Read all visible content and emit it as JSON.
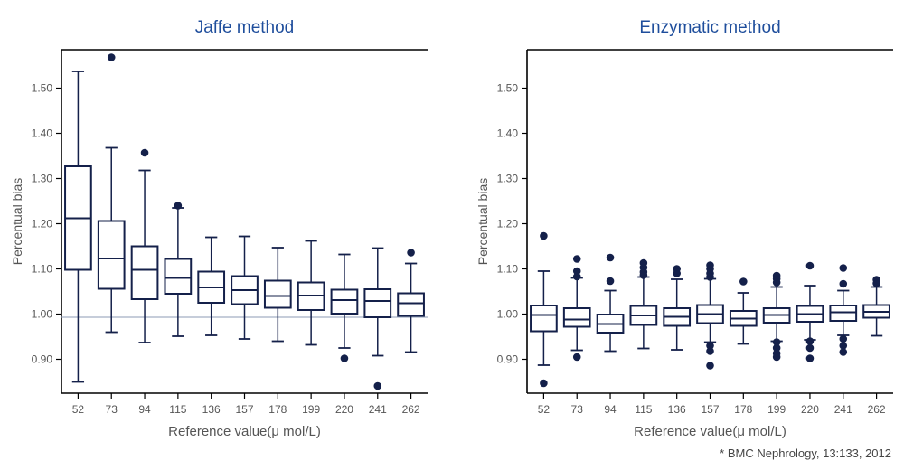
{
  "footnote": "* BMC Nephrology, 13:133, 2012",
  "colors": {
    "title": "#1f4e9c",
    "box": "#14204a",
    "reference_line": "#8e9bb4",
    "axis_text": "#555555"
  },
  "chart_data": [
    {
      "type": "box",
      "title": "Jaffe method",
      "xlabel": "Reference value(μ mol/L)",
      "ylabel": "Percentual bias",
      "ylim": [
        0.825,
        1.585
      ],
      "yticks": [
        "0.90",
        "1.00",
        "1.10",
        "1.20",
        "1.30",
        "1.40",
        "1.50"
      ],
      "reference_line": 0.993,
      "categories": [
        "52",
        "73",
        "94",
        "115",
        "136",
        "157",
        "178",
        "199",
        "220",
        "241",
        "262"
      ],
      "boxes": [
        {
          "whisker_low": 0.85,
          "q1": 1.098,
          "median": 1.212,
          "q3": 1.327,
          "whisker_high": 1.537,
          "outliers": []
        },
        {
          "whisker_low": 0.96,
          "q1": 1.056,
          "median": 1.123,
          "q3": 1.206,
          "whisker_high": 1.368,
          "outliers": [
            1.568
          ]
        },
        {
          "whisker_low": 0.937,
          "q1": 1.033,
          "median": 1.098,
          "q3": 1.15,
          "whisker_high": 1.318,
          "outliers": [
            1.357
          ]
        },
        {
          "whisker_low": 0.951,
          "q1": 1.045,
          "median": 1.08,
          "q3": 1.122,
          "whisker_high": 1.235,
          "outliers": [
            1.24
          ]
        },
        {
          "whisker_low": 0.953,
          "q1": 1.025,
          "median": 1.059,
          "q3": 1.094,
          "whisker_high": 1.17,
          "outliers": []
        },
        {
          "whisker_low": 0.945,
          "q1": 1.022,
          "median": 1.053,
          "q3": 1.084,
          "whisker_high": 1.172,
          "outliers": []
        },
        {
          "whisker_low": 0.94,
          "q1": 1.014,
          "median": 1.04,
          "q3": 1.074,
          "whisker_high": 1.147,
          "outliers": []
        },
        {
          "whisker_low": 0.932,
          "q1": 1.009,
          "median": 1.041,
          "q3": 1.07,
          "whisker_high": 1.162,
          "outliers": []
        },
        {
          "whisker_low": 0.925,
          "q1": 1.001,
          "median": 1.031,
          "q3": 1.054,
          "whisker_high": 1.132,
          "outliers": [
            0.902
          ]
        },
        {
          "whisker_low": 0.908,
          "q1": 0.993,
          "median": 1.029,
          "q3": 1.055,
          "whisker_high": 1.146,
          "outliers": [
            0.841
          ]
        },
        {
          "whisker_low": 0.916,
          "q1": 0.996,
          "median": 1.024,
          "q3": 1.046,
          "whisker_high": 1.112,
          "outliers": [
            1.136
          ]
        }
      ]
    },
    {
      "type": "box",
      "title": "Enzymatic method",
      "xlabel": "Reference value(μ mol/L)",
      "ylabel": "Percentual bias",
      "ylim": [
        0.825,
        1.585
      ],
      "yticks": [
        "0.90",
        "1.00",
        "1.10",
        "1.20",
        "1.30",
        "1.40",
        "1.50"
      ],
      "categories": [
        "52",
        "73",
        "94",
        "115",
        "136",
        "157",
        "178",
        "199",
        "220",
        "241",
        "262"
      ],
      "boxes": [
        {
          "whisker_low": 0.887,
          "q1": 0.962,
          "median": 0.998,
          "q3": 1.019,
          "whisker_high": 1.095,
          "outliers": [
            1.173,
            0.847
          ]
        },
        {
          "whisker_low": 0.92,
          "q1": 0.972,
          "median": 0.988,
          "q3": 1.013,
          "whisker_high": 1.08,
          "outliers": [
            1.122,
            1.095,
            1.083,
            0.905
          ]
        },
        {
          "whisker_low": 0.918,
          "q1": 0.959,
          "median": 0.978,
          "q3": 0.999,
          "whisker_high": 1.052,
          "outliers": [
            1.125,
            1.073
          ]
        },
        {
          "whisker_low": 0.924,
          "q1": 0.976,
          "median": 0.997,
          "q3": 1.018,
          "whisker_high": 1.082,
          "outliers": [
            1.113,
            1.103,
            1.093,
            1.086
          ]
        },
        {
          "whisker_low": 0.921,
          "q1": 0.974,
          "median": 0.994,
          "q3": 1.013,
          "whisker_high": 1.077,
          "outliers": [
            1.1,
            1.09
          ]
        },
        {
          "whisker_low": 0.938,
          "q1": 0.98,
          "median": 1.0,
          "q3": 1.02,
          "whisker_high": 1.078,
          "outliers": [
            1.108,
            1.1,
            1.09,
            1.082,
            0.93,
            0.918,
            0.886
          ]
        },
        {
          "whisker_low": 0.934,
          "q1": 0.974,
          "median": 0.99,
          "q3": 1.007,
          "whisker_high": 1.047,
          "outliers": [
            1.072
          ]
        },
        {
          "whisker_low": 0.94,
          "q1": 0.981,
          "median": 0.998,
          "q3": 1.013,
          "whisker_high": 1.06,
          "outliers": [
            1.085,
            1.078,
            1.07,
            0.938,
            0.925,
            0.913,
            0.905
          ]
        },
        {
          "whisker_low": 0.943,
          "q1": 0.983,
          "median": 1.0,
          "q3": 1.018,
          "whisker_high": 1.063,
          "outliers": [
            1.107,
            0.94,
            0.925,
            0.902
          ]
        },
        {
          "whisker_low": 0.953,
          "q1": 0.985,
          "median": 1.004,
          "q3": 1.019,
          "whisker_high": 1.052,
          "outliers": [
            1.102,
            1.067,
            0.945,
            0.93,
            0.916
          ]
        },
        {
          "whisker_low": 0.952,
          "q1": 0.992,
          "median": 1.005,
          "q3": 1.02,
          "whisker_high": 1.06,
          "outliers": [
            1.076,
            1.068
          ]
        }
      ]
    }
  ]
}
